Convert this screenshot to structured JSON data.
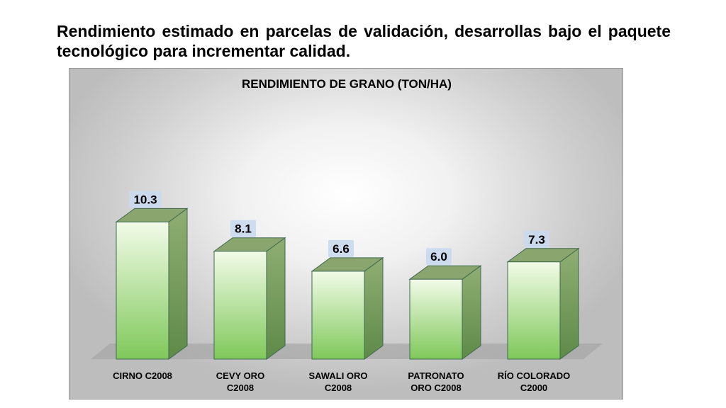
{
  "slide": {
    "heading": "Rendimiento estimado en parcelas de validación, desarrollas bajo el paquete tecnológico para incrementar calidad."
  },
  "colors": {
    "bar_front_top": "#f2fbe8",
    "bar_front_bottom": "#7fc85a",
    "bar_side": "#7a9e5c",
    "bar_top": "#8aa66e",
    "bar_edge": "#3f6a50",
    "label_box": "#c9d9ee",
    "floor": "#a8a8a8"
  },
  "chart_data": {
    "type": "bar",
    "title": "RENDIMIENTO DE GRANO (TON/HA)",
    "categories": [
      [
        "CIRNO C2008"
      ],
      [
        "CEVY ORO",
        "C2008"
      ],
      [
        "SAWALI ORO",
        "C2008"
      ],
      [
        "PATRONATO",
        "ORO C2008"
      ],
      [
        "RÍO COLORADO",
        "C2000"
      ]
    ],
    "values": [
      10.3,
      8.1,
      6.6,
      6.0,
      7.3
    ],
    "data_labels": [
      "10.3",
      "8.1",
      "6.6",
      "6.0",
      "7.3"
    ],
    "ylim": [
      0,
      12
    ],
    "grid": false,
    "legend": "none"
  }
}
